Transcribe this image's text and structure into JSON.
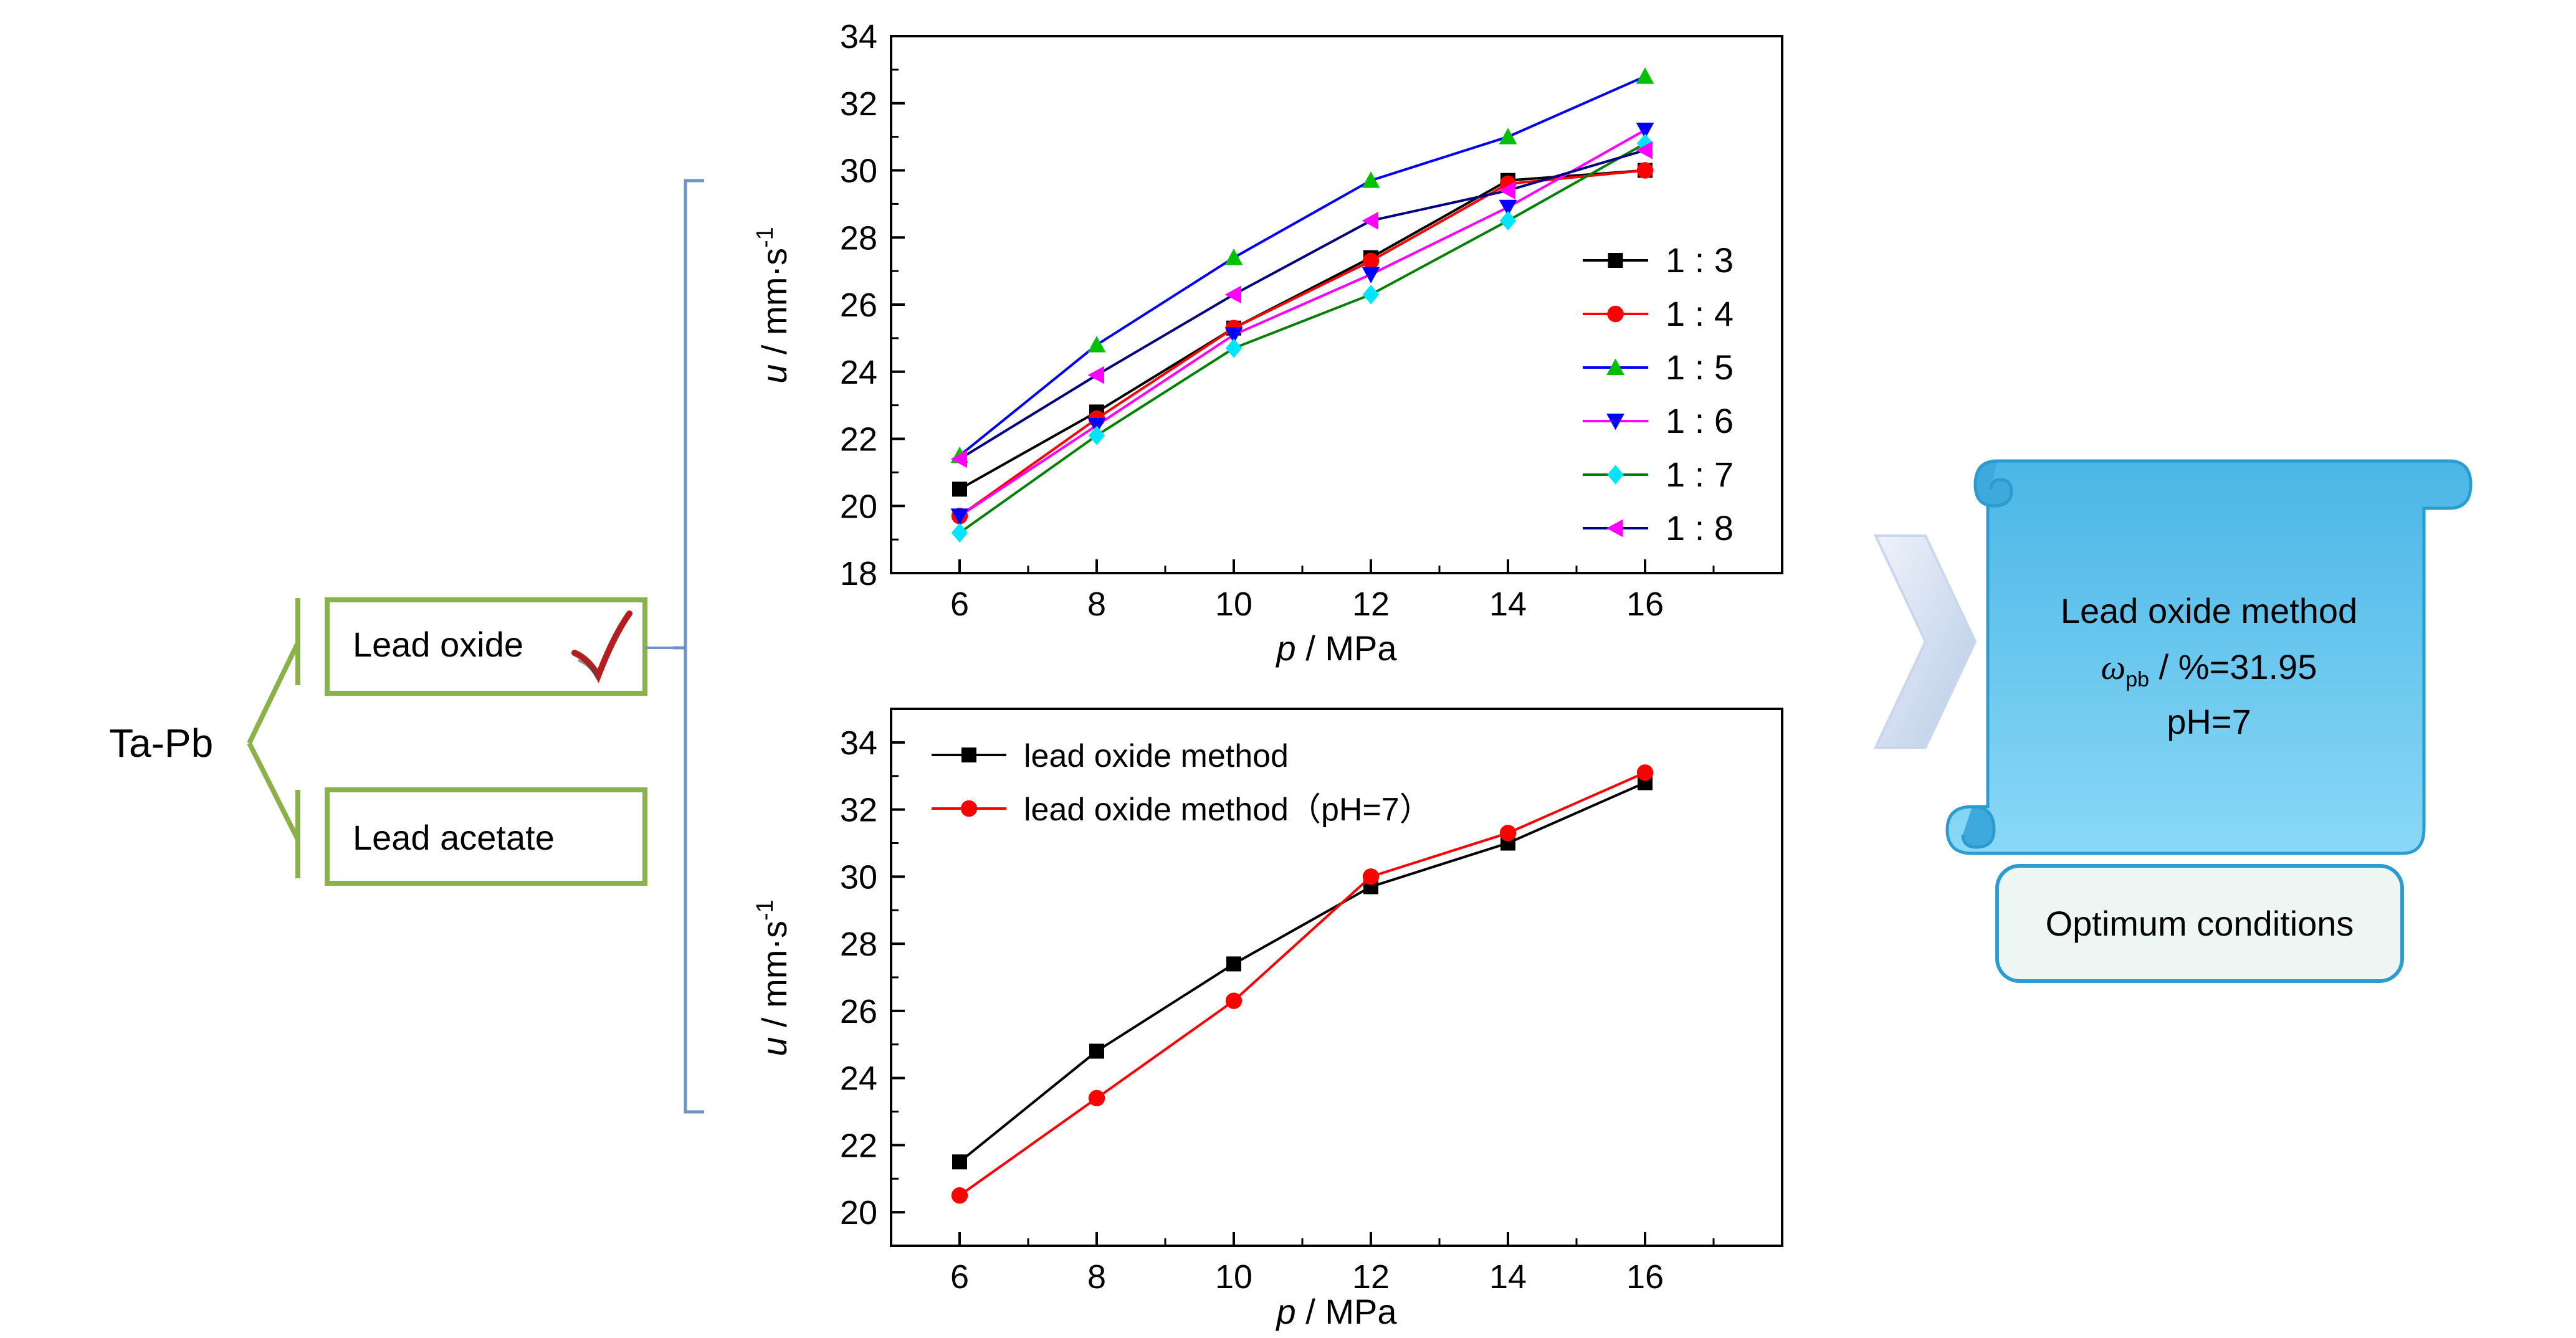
{
  "tree": {
    "root": "Ta-Pb",
    "options": [
      {
        "label": "Lead oxide",
        "checked": true
      },
      {
        "label": "Lead acetate",
        "checked": false
      }
    ],
    "branch_color": "#8bb24a"
  },
  "result": {
    "line1": "Lead oxide method",
    "omega_symbol": "ω",
    "omega_sub": "pb",
    "omega_value": " / %=31.95",
    "ph": "pH=7",
    "footer": "Optimum conditions",
    "scroll_color": "#5cc3ee"
  },
  "chart_data": [
    {
      "type": "line",
      "x": [
        6,
        8,
        10,
        12,
        14,
        16
      ],
      "xlabel_var": "p",
      "xlabel_unit": " / MPa",
      "ylabel_var": "u",
      "ylabel_unit": " / mm·s",
      "ylabel_sup": "-1",
      "xlim": [
        5,
        18
      ],
      "ylim": [
        18,
        34
      ],
      "xticks": [
        6,
        8,
        10,
        12,
        14,
        16
      ],
      "yticks": [
        18,
        20,
        22,
        24,
        26,
        28,
        30,
        32,
        34
      ],
      "legend_position": "right",
      "series": [
        {
          "name": "1 : 3",
          "color": "#000000",
          "marker": "square",
          "values": [
            20.5,
            22.8,
            25.3,
            27.4,
            29.7,
            30.0
          ]
        },
        {
          "name": "1 : 4",
          "color": "#ff0000",
          "marker": "circle",
          "values": [
            19.7,
            22.6,
            25.3,
            27.3,
            29.6,
            30.0
          ]
        },
        {
          "name": "1 : 5",
          "color": "#00c000",
          "line_color": "#0000ff",
          "marker": "triangle-up",
          "values": [
            21.5,
            24.8,
            27.4,
            29.7,
            31.0,
            32.8
          ]
        },
        {
          "name": "1 : 6",
          "color": "#0000ff",
          "line_color": "#ff00ff",
          "marker": "triangle-down",
          "values": [
            19.7,
            22.4,
            25.1,
            26.9,
            28.9,
            31.2
          ]
        },
        {
          "name": "1 : 7",
          "color": "#00e5ff",
          "line_color": "#008000",
          "marker": "diamond",
          "values": [
            19.2,
            22.1,
            24.7,
            26.3,
            28.5,
            30.8
          ]
        },
        {
          "name": "1 : 8",
          "color": "#ff00ff",
          "line_color": "#000080",
          "marker": "triangle-left",
          "values": [
            21.4,
            23.9,
            26.3,
            28.5,
            29.4,
            30.6
          ]
        }
      ]
    },
    {
      "type": "line",
      "x": [
        6,
        8,
        10,
        12,
        14,
        16
      ],
      "xlabel_var": "p",
      "xlabel_unit": " / MPa",
      "ylabel_var": "u",
      "ylabel_unit": " / mm·s",
      "ylabel_sup": "-1",
      "xlim": [
        5,
        18
      ],
      "ylim": [
        19,
        35
      ],
      "xticks": [
        6,
        8,
        10,
        12,
        14,
        16
      ],
      "yticks": [
        20,
        22,
        24,
        26,
        28,
        30,
        32,
        34
      ],
      "legend_position": "top-left",
      "series": [
        {
          "name": "lead oxide method",
          "color": "#000000",
          "marker": "square",
          "values": [
            21.5,
            24.8,
            27.4,
            29.7,
            31.0,
            32.8
          ]
        },
        {
          "name": "lead oxide method（pH=7）",
          "color": "#ff0000",
          "marker": "circle",
          "values": [
            20.5,
            23.4,
            26.3,
            30.0,
            31.3,
            33.1
          ]
        }
      ]
    }
  ]
}
